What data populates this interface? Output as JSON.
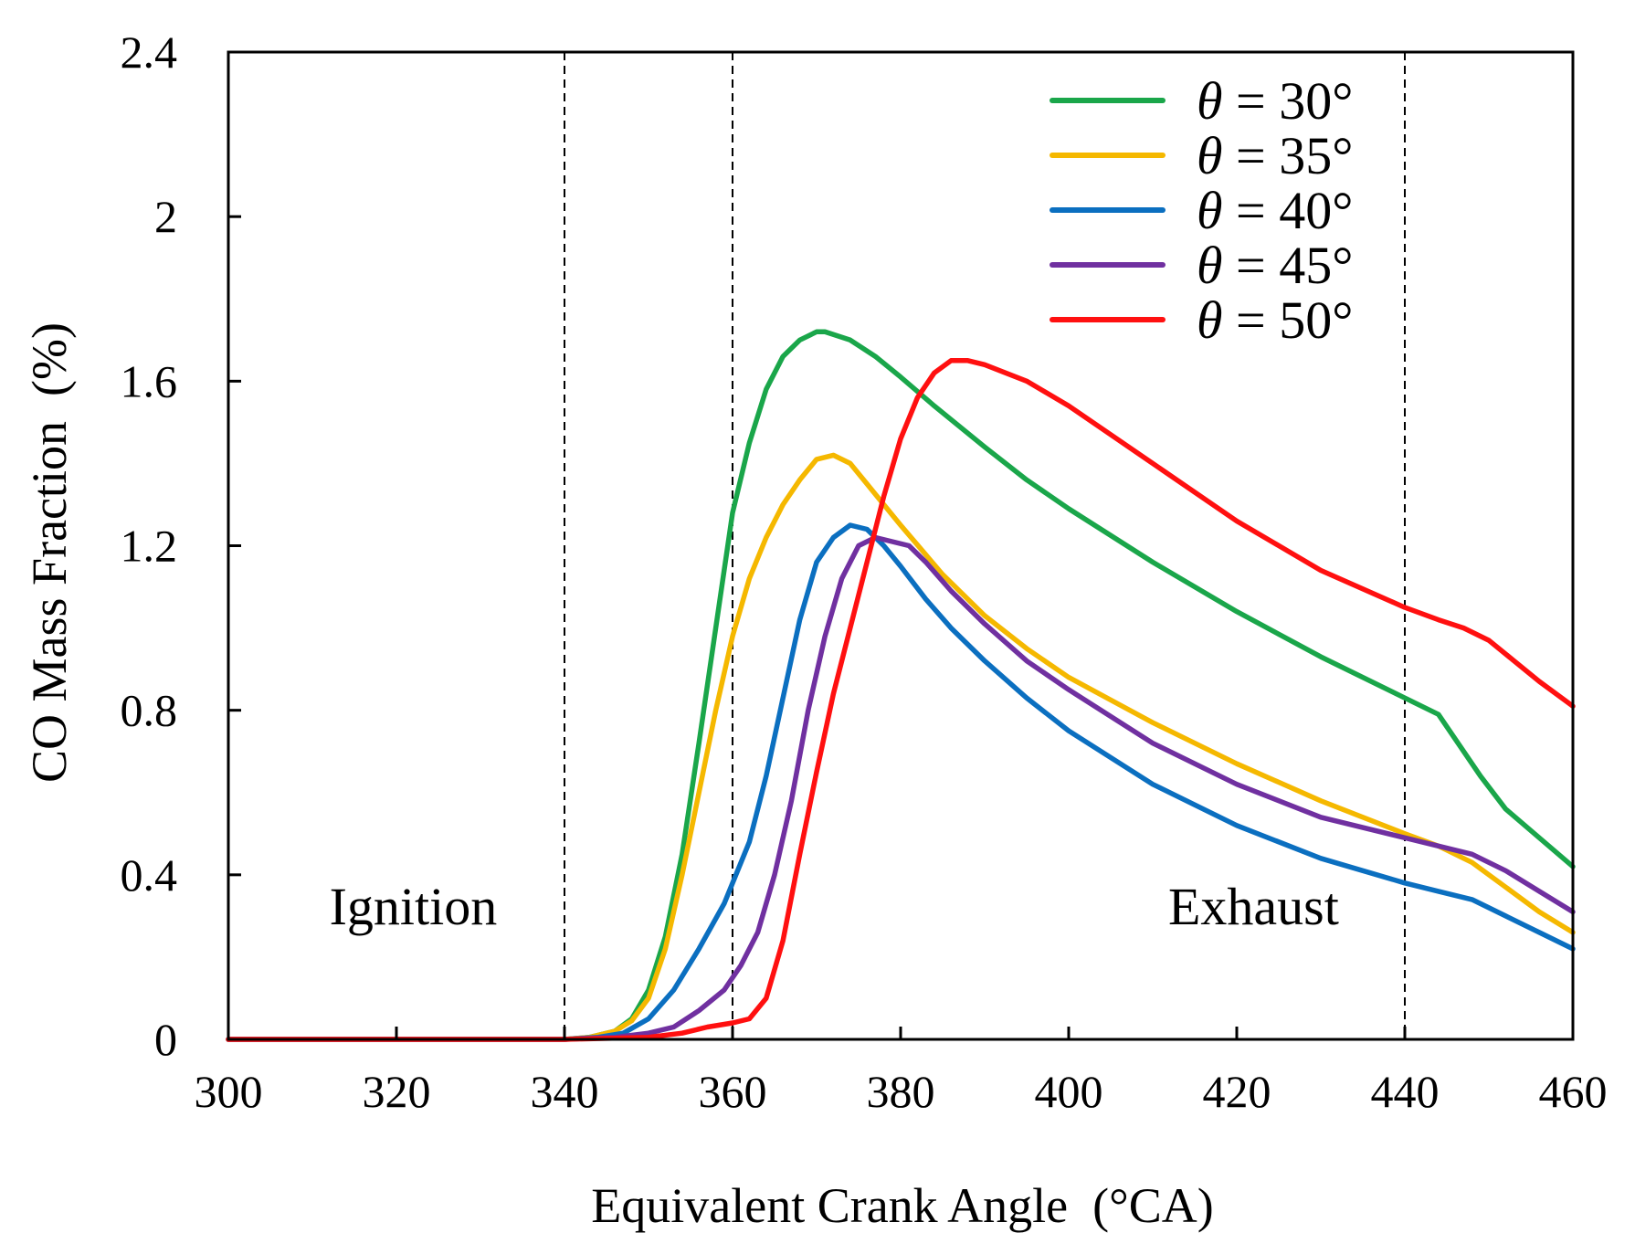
{
  "chart_data": {
    "type": "line",
    "title": "",
    "xlabel": "Equivalent Crank Angle  (°CA)",
    "ylabel": "CO Mass Fraction  (%)",
    "xlim": [
      300,
      460
    ],
    "ylim": [
      0,
      2.4
    ],
    "x_ticks": [
      300,
      320,
      340,
      360,
      380,
      400,
      420,
      440,
      460
    ],
    "y_ticks": [
      0,
      0.4,
      0.8,
      1.2,
      1.6,
      2,
      2.4
    ],
    "x_tick_labels": [
      "300",
      "320",
      "340",
      "360",
      "380",
      "400",
      "420",
      "440",
      "460"
    ],
    "y_tick_labels": [
      "0",
      "0.4",
      "0.8",
      "1.2",
      "1.6",
      "2",
      "2.4"
    ],
    "grid": false,
    "legend_position": "top-right",
    "reference_lines_x": [
      340,
      360,
      440
    ],
    "annotations": [
      {
        "text": "Ignition",
        "x": 322,
        "y": 0.28
      },
      {
        "text": "Exhaust",
        "x": 422,
        "y": 0.28
      }
    ],
    "series": [
      {
        "name": "θ = 30°",
        "theta_symbol": "θ",
        "label_rest": "= 30°",
        "color": "#1aa64a",
        "points": [
          [
            300,
            0
          ],
          [
            340,
            0
          ],
          [
            343,
            0.005
          ],
          [
            346,
            0.02
          ],
          [
            348,
            0.05
          ],
          [
            350,
            0.12
          ],
          [
            352,
            0.25
          ],
          [
            354,
            0.45
          ],
          [
            356,
            0.72
          ],
          [
            358,
            1.0
          ],
          [
            360,
            1.28
          ],
          [
            362,
            1.45
          ],
          [
            364,
            1.58
          ],
          [
            366,
            1.66
          ],
          [
            368,
            1.7
          ],
          [
            370,
            1.72
          ],
          [
            371,
            1.72
          ],
          [
            374,
            1.7
          ],
          [
            377,
            1.66
          ],
          [
            380,
            1.61
          ],
          [
            384,
            1.54
          ],
          [
            390,
            1.44
          ],
          [
            395,
            1.36
          ],
          [
            400,
            1.29
          ],
          [
            410,
            1.16
          ],
          [
            420,
            1.04
          ],
          [
            430,
            0.93
          ],
          [
            440,
            0.83
          ],
          [
            444,
            0.79
          ],
          [
            446,
            0.73
          ],
          [
            449,
            0.64
          ],
          [
            452,
            0.56
          ],
          [
            456,
            0.49
          ],
          [
            460,
            0.42
          ]
        ]
      },
      {
        "name": "θ = 35°",
        "theta_symbol": "θ",
        "label_rest": "= 35°",
        "color": "#f5b800",
        "points": [
          [
            300,
            0
          ],
          [
            340,
            0
          ],
          [
            343,
            0.005
          ],
          [
            346,
            0.02
          ],
          [
            348,
            0.045
          ],
          [
            350,
            0.1
          ],
          [
            352,
            0.22
          ],
          [
            354,
            0.4
          ],
          [
            356,
            0.6
          ],
          [
            358,
            0.8
          ],
          [
            360,
            0.98
          ],
          [
            362,
            1.12
          ],
          [
            364,
            1.22
          ],
          [
            366,
            1.3
          ],
          [
            368,
            1.36
          ],
          [
            370,
            1.41
          ],
          [
            372,
            1.42
          ],
          [
            374,
            1.4
          ],
          [
            376,
            1.35
          ],
          [
            378,
            1.3
          ],
          [
            380,
            1.25
          ],
          [
            385,
            1.13
          ],
          [
            390,
            1.03
          ],
          [
            395,
            0.95
          ],
          [
            400,
            0.88
          ],
          [
            410,
            0.77
          ],
          [
            420,
            0.67
          ],
          [
            430,
            0.58
          ],
          [
            440,
            0.5
          ],
          [
            444,
            0.47
          ],
          [
            448,
            0.43
          ],
          [
            452,
            0.37
          ],
          [
            456,
            0.31
          ],
          [
            460,
            0.26
          ]
        ]
      },
      {
        "name": "θ = 40°",
        "theta_symbol": "θ",
        "label_rest": "= 40°",
        "color": "#0b6fc0",
        "points": [
          [
            300,
            0
          ],
          [
            340,
            0
          ],
          [
            344,
            0.005
          ],
          [
            347,
            0.015
          ],
          [
            350,
            0.05
          ],
          [
            353,
            0.12
          ],
          [
            356,
            0.22
          ],
          [
            359,
            0.33
          ],
          [
            362,
            0.48
          ],
          [
            364,
            0.64
          ],
          [
            366,
            0.83
          ],
          [
            368,
            1.02
          ],
          [
            370,
            1.16
          ],
          [
            372,
            1.22
          ],
          [
            374,
            1.25
          ],
          [
            376,
            1.24
          ],
          [
            378,
            1.2
          ],
          [
            380,
            1.15
          ],
          [
            383,
            1.07
          ],
          [
            386,
            1.0
          ],
          [
            390,
            0.92
          ],
          [
            395,
            0.83
          ],
          [
            400,
            0.75
          ],
          [
            410,
            0.62
          ],
          [
            420,
            0.52
          ],
          [
            430,
            0.44
          ],
          [
            440,
            0.38
          ],
          [
            444,
            0.36
          ],
          [
            448,
            0.34
          ],
          [
            452,
            0.3
          ],
          [
            456,
            0.26
          ],
          [
            460,
            0.22
          ]
        ]
      },
      {
        "name": "θ = 45°",
        "theta_symbol": "θ",
        "label_rest": "= 45°",
        "color": "#7030a0",
        "points": [
          [
            300,
            0
          ],
          [
            340,
            0
          ],
          [
            346,
            0.005
          ],
          [
            350,
            0.015
          ],
          [
            353,
            0.03
          ],
          [
            356,
            0.07
          ],
          [
            359,
            0.12
          ],
          [
            361,
            0.18
          ],
          [
            363,
            0.26
          ],
          [
            365,
            0.4
          ],
          [
            367,
            0.58
          ],
          [
            369,
            0.8
          ],
          [
            371,
            0.98
          ],
          [
            373,
            1.12
          ],
          [
            375,
            1.2
          ],
          [
            377,
            1.22
          ],
          [
            379,
            1.21
          ],
          [
            381,
            1.2
          ],
          [
            383,
            1.16
          ],
          [
            386,
            1.09
          ],
          [
            390,
            1.01
          ],
          [
            395,
            0.92
          ],
          [
            400,
            0.85
          ],
          [
            410,
            0.72
          ],
          [
            420,
            0.62
          ],
          [
            430,
            0.54
          ],
          [
            440,
            0.49
          ],
          [
            444,
            0.47
          ],
          [
            448,
            0.45
          ],
          [
            452,
            0.41
          ],
          [
            456,
            0.36
          ],
          [
            460,
            0.31
          ]
        ]
      },
      {
        "name": "θ = 50°",
        "theta_symbol": "θ",
        "label_rest": "= 50°",
        "color": "#ff1010",
        "points": [
          [
            300,
            0
          ],
          [
            340,
            0
          ],
          [
            350,
            0.005
          ],
          [
            354,
            0.015
          ],
          [
            357,
            0.03
          ],
          [
            360,
            0.04
          ],
          [
            362,
            0.05
          ],
          [
            364,
            0.1
          ],
          [
            366,
            0.24
          ],
          [
            368,
            0.45
          ],
          [
            370,
            0.65
          ],
          [
            372,
            0.84
          ],
          [
            374,
            1.0
          ],
          [
            376,
            1.16
          ],
          [
            378,
            1.32
          ],
          [
            380,
            1.46
          ],
          [
            382,
            1.56
          ],
          [
            384,
            1.62
          ],
          [
            386,
            1.65
          ],
          [
            388,
            1.65
          ],
          [
            390,
            1.64
          ],
          [
            395,
            1.6
          ],
          [
            400,
            1.54
          ],
          [
            405,
            1.47
          ],
          [
            410,
            1.4
          ],
          [
            420,
            1.26
          ],
          [
            430,
            1.14
          ],
          [
            440,
            1.05
          ],
          [
            444,
            1.02
          ],
          [
            447,
            1.0
          ],
          [
            450,
            0.97
          ],
          [
            453,
            0.92
          ],
          [
            456,
            0.87
          ],
          [
            460,
            0.81
          ]
        ]
      }
    ]
  }
}
